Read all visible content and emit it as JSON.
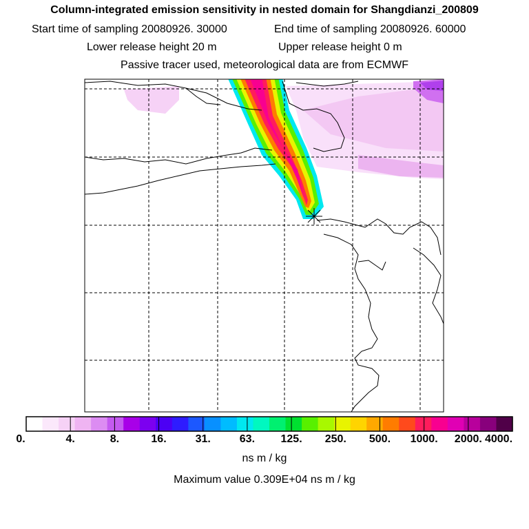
{
  "header": {
    "title": "Column-integrated emission sensitivity in nested domain for Shangdianzi_200809",
    "start_label": "Start time of sampling 20080926. 30000",
    "end_label": "End time of sampling 20080926. 60000",
    "lower_label": "Lower release height   20 m",
    "upper_label": "Upper release height    0 m",
    "tracer_note": "Passive tracer used, meteorological data are from ECMWF"
  },
  "colorbar": {
    "tick_labels": [
      "0.",
      "4.",
      "8.",
      "16.",
      "31.",
      "63.",
      "125.",
      "250.",
      "500.",
      "1000.",
      "2000.",
      "4000."
    ],
    "unit": "ns m / kg",
    "max_value_text": "Maximum value  0.309E+04 ns m / kg",
    "colors": [
      "#ffffff",
      "#fbe8fb",
      "#f6d2f6",
      "#efb4f2",
      "#dc8cf2",
      "#c45af0",
      "#a800e8",
      "#7c00f0",
      "#4c00f4",
      "#2e1cff",
      "#1c58ff",
      "#0890ff",
      "#00bcff",
      "#00e8f0",
      "#00f8c0",
      "#00f070",
      "#00e030",
      "#58f000",
      "#a8f800",
      "#e8f400",
      "#ffd400",
      "#ffa800",
      "#ff7c00",
      "#ff4a1c",
      "#ff1c5c",
      "#f80090",
      "#e000b4",
      "#b8009c",
      "#88007c",
      "#500048"
    ],
    "accent": "#ff0090"
  },
  "map": {
    "station_marker": "asterisk-marker"
  }
}
